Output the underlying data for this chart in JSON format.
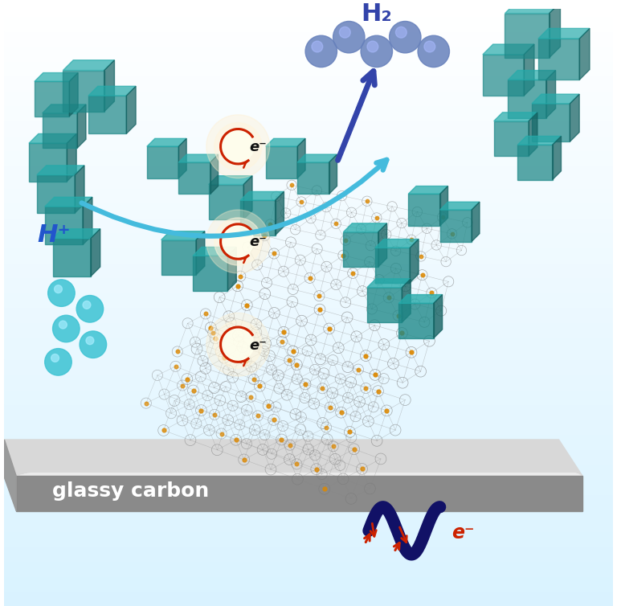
{
  "bg_color": "#cceeff",
  "platform_color_top": "#c8c8c8",
  "platform_color_side": "#707070",
  "platform_label": "glassy carbon",
  "platform_label_color": "#ffffff",
  "h2_label": "H₂",
  "hplus_label": "H⁺",
  "eminus_label": "e⁻",
  "teal_color": "#1a7a7a",
  "cyan_sphere_color": "#40c4d4",
  "blue_sphere_color": "#6680bb",
  "blue_arrow_color": "#3344aa",
  "cyan_arc_color": "#44bbdd",
  "red_arrow_color": "#cc2200",
  "wire_color": "#111166",
  "figsize": [
    7.68,
    7.54
  ],
  "dpi": 100
}
